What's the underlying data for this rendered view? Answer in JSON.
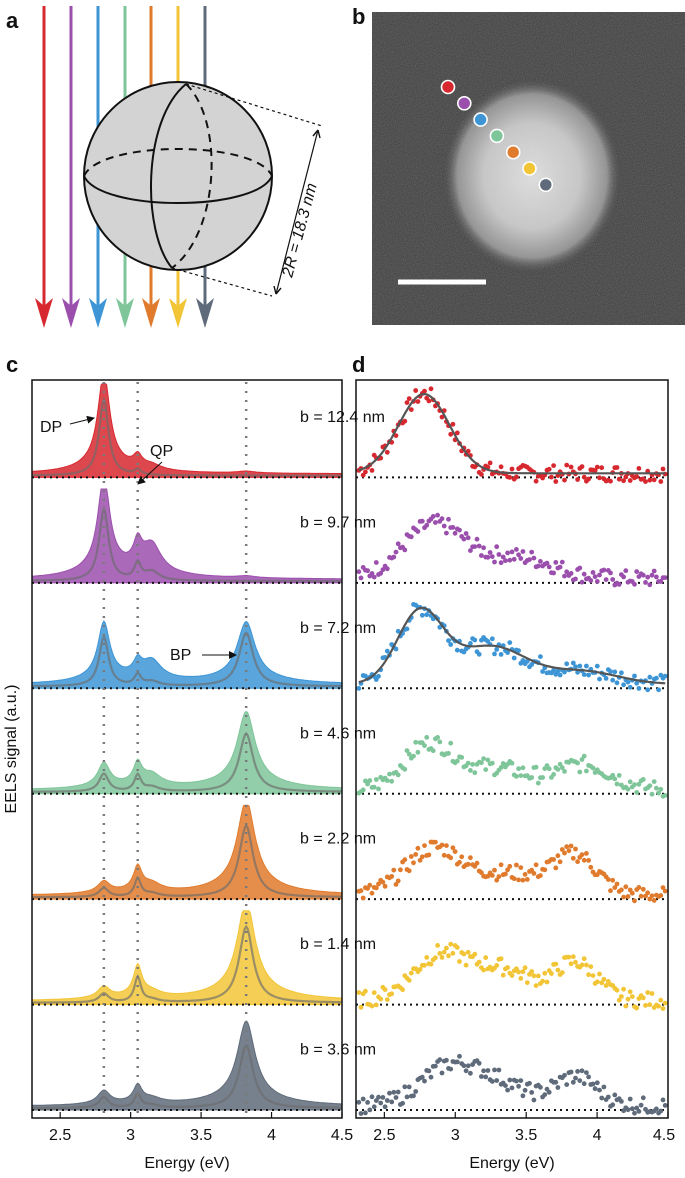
{
  "panels": {
    "a": "a",
    "b": "b",
    "c": "c",
    "d": "d"
  },
  "colors": [
    "#d7282f",
    "#9b4fad",
    "#3d95d6",
    "#7fc59a",
    "#e07a2c",
    "#f2c537",
    "#5f6b7a"
  ],
  "panel_a": {
    "dimension_label": "2R = 18.3 nm",
    "beam_count": 7
  },
  "panel_b": {
    "image": "STEM dark-field micrograph of spherical nanoparticle",
    "probe_positions": 7,
    "scale_bar": true
  },
  "chart_data": [
    {
      "id": "c",
      "type": "area",
      "title": "",
      "xlabel": "Energy (eV)",
      "ylabel": "EELS signal (a.u.)",
      "xlim": [
        2.3,
        4.5
      ],
      "xticks": [
        "2.5",
        "3",
        "3.5",
        "4",
        "4.5"
      ],
      "xtick_values": [
        2.5,
        3,
        3.5,
        4,
        4.5
      ],
      "reference_lines_eV": [
        2.81,
        3.05,
        3.82
      ],
      "annotations": [
        {
          "text": "DP",
          "energy": 2.81
        },
        {
          "text": "QP",
          "energy": 3.05
        },
        {
          "text": "BP",
          "energy": 3.82
        }
      ],
      "peaks_eV": [
        2.81,
        3.05,
        3.15,
        3.82
      ],
      "series": [
        {
          "b_nm": 12.4,
          "amplitudes": [
            1.0,
            0.12,
            0.05,
            0.02
          ],
          "line_amplitudes": [
            0.85,
            0.06,
            0.0,
            0.0
          ]
        },
        {
          "b_nm": 9.7,
          "amplitudes": [
            1.0,
            0.25,
            0.3,
            0.02
          ],
          "line_amplitudes": [
            0.8,
            0.18,
            0.1,
            0.0
          ]
        },
        {
          "b_nm": 7.2,
          "amplitudes": [
            0.6,
            0.15,
            0.2,
            0.62
          ],
          "line_amplitudes": [
            0.55,
            0.12,
            0.05,
            0.6
          ]
        },
        {
          "b_nm": 4.6,
          "amplitudes": [
            0.25,
            0.22,
            0.12,
            0.78
          ],
          "line_amplitudes": [
            0.2,
            0.18,
            0.05,
            0.65
          ]
        },
        {
          "b_nm": 2.2,
          "amplitudes": [
            0.12,
            0.25,
            0.08,
            0.95
          ],
          "line_amplitudes": [
            0.1,
            0.2,
            0.04,
            0.8
          ]
        },
        {
          "b_nm": 1.4,
          "amplitudes": [
            0.12,
            0.32,
            0.05,
            1.0
          ],
          "line_amplitudes": [
            0.1,
            0.28,
            0.03,
            0.85
          ]
        },
        {
          "b_nm": 3.6,
          "amplitudes": [
            0.14,
            0.18,
            0.05,
            0.85
          ],
          "line_amplitudes": [
            0.12,
            0.15,
            0.03,
            0.7
          ]
        }
      ]
    },
    {
      "id": "d",
      "type": "scatter",
      "title": "",
      "xlabel": "Energy (eV)",
      "xlim": [
        2.3,
        4.5
      ],
      "xticks": [
        "2.5",
        "3",
        "3.5",
        "4",
        "4.5"
      ],
      "xtick_values": [
        2.5,
        3,
        3.5,
        4,
        4.5
      ],
      "series": [
        {
          "label": "b = 12.4 nm",
          "fit": true
        },
        {
          "label": "b = 9.7 nm",
          "fit": false
        },
        {
          "label": "b = 7.2 nm",
          "fit": true
        },
        {
          "label": "b = 4.6 nm",
          "fit": false
        },
        {
          "label": "b = 2.2 nm",
          "fit": false
        },
        {
          "label": "b = 1.4 nm",
          "fit": false
        },
        {
          "label": "b = 3.6 nm",
          "fit": false
        }
      ]
    }
  ]
}
